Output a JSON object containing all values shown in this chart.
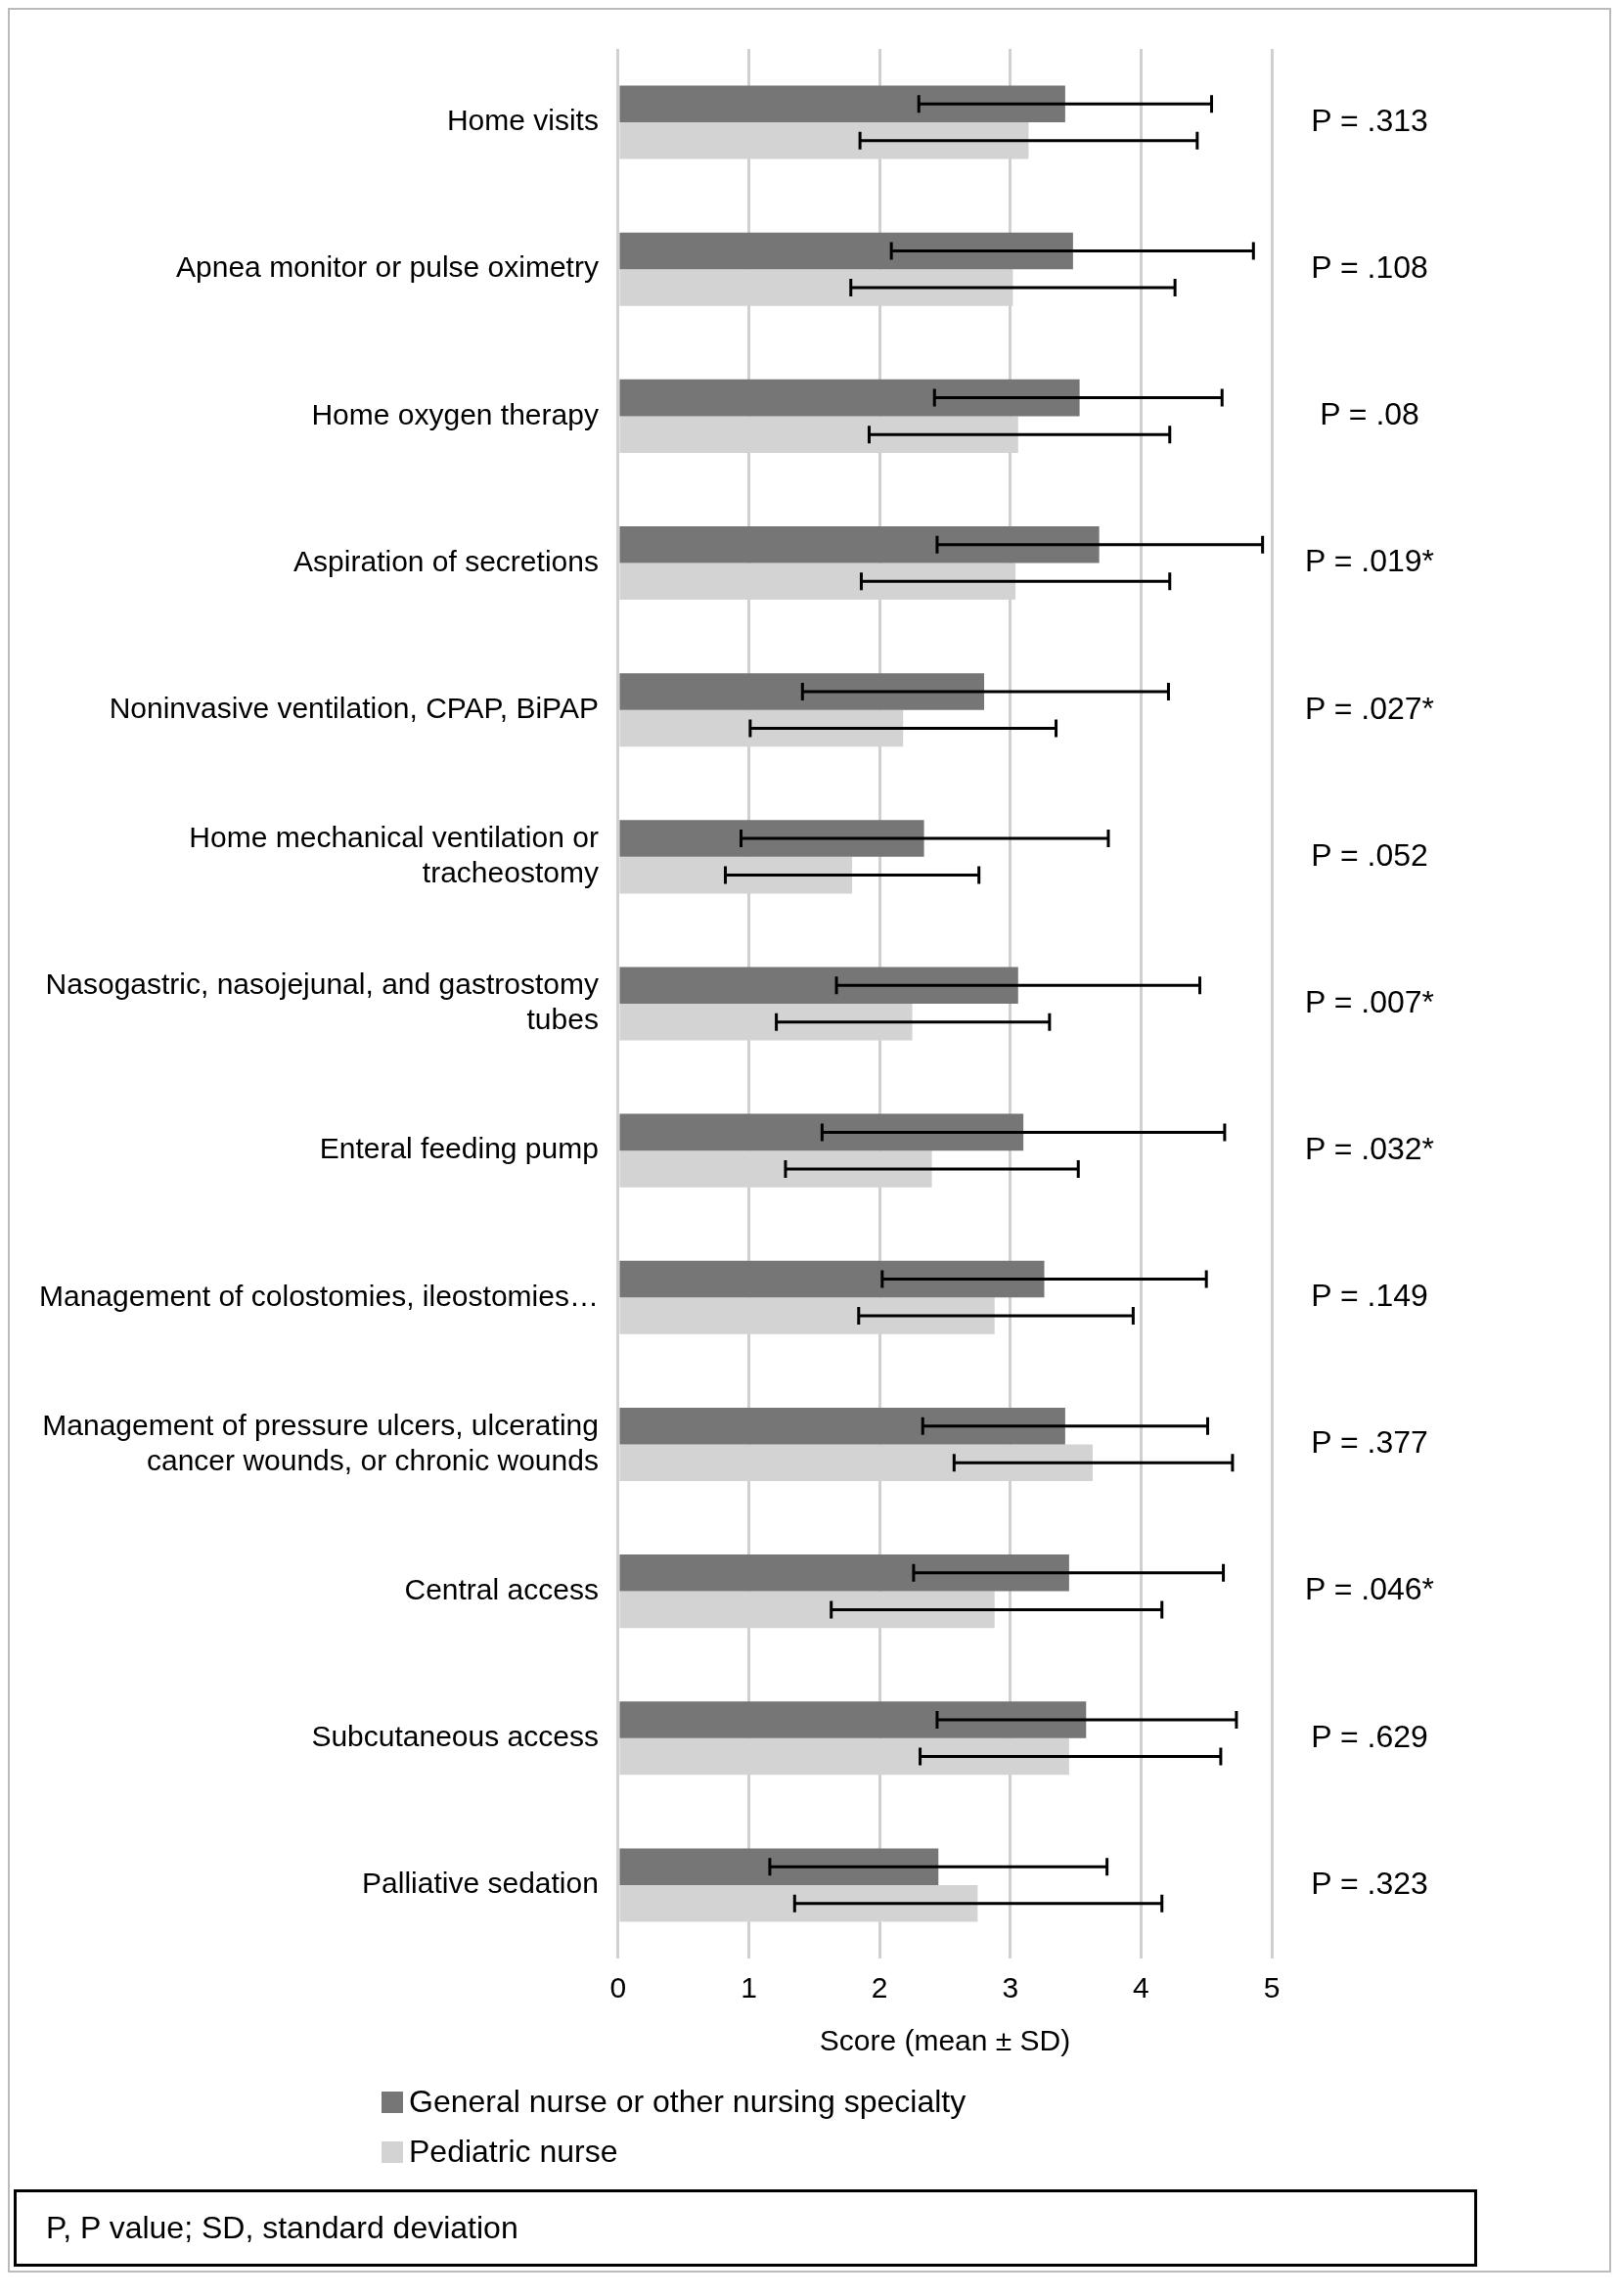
{
  "chart_data": {
    "type": "bar",
    "orientation": "horizontal",
    "xlabel": "Score (mean ± SD)",
    "categories": [
      "Home visits",
      "Apnea monitor or pulse oximetry",
      "Home oxygen therapy",
      "Aspiration of secretions",
      "Noninvasive ventilation, CPAP, BiPAP",
      "Home mechanical ventilation or tracheostomy",
      "Nasogastric, nasojejunal, and gastrostomy tubes",
      "Enteral feeding pump",
      "Management of colostomies, ileostomies…",
      "Management of pressure ulcers, ulcerating cancer wounds, or chronic wounds",
      "Central access",
      "Subcutaneous access",
      "Palliative sedation"
    ],
    "series": [
      {
        "name": "General nurse or other nursing specialty",
        "color": "#767676",
        "values": [
          3.42,
          3.48,
          3.53,
          3.68,
          2.8,
          2.34,
          3.06,
          3.1,
          3.26,
          3.42,
          3.45,
          3.58,
          2.45
        ],
        "errors": [
          [
            2.3,
            4.54
          ],
          [
            2.09,
            4.86
          ],
          [
            2.42,
            4.62
          ],
          [
            2.44,
            4.93
          ],
          [
            1.41,
            4.21
          ],
          [
            0.94,
            3.75
          ],
          [
            1.67,
            4.45
          ],
          [
            1.56,
            4.64
          ],
          [
            2.02,
            4.5
          ],
          [
            2.33,
            4.51
          ],
          [
            2.26,
            4.63
          ],
          [
            2.44,
            4.73
          ],
          [
            1.16,
            3.74
          ]
        ]
      },
      {
        "name": "Pediatric nurse",
        "color": "#d3d3d3",
        "values": [
          3.14,
          3.02,
          3.06,
          3.04,
          2.18,
          1.79,
          2.25,
          2.4,
          2.88,
          3.63,
          2.88,
          3.45,
          2.75
        ],
        "errors": [
          [
            1.85,
            4.43
          ],
          [
            1.78,
            4.26
          ],
          [
            1.92,
            4.22
          ],
          [
            1.86,
            4.22
          ],
          [
            1.01,
            3.35
          ],
          [
            0.82,
            2.76
          ],
          [
            1.21,
            3.3
          ],
          [
            1.28,
            3.52
          ],
          [
            1.84,
            3.94
          ],
          [
            2.57,
            4.7
          ],
          [
            1.63,
            4.16
          ],
          [
            2.31,
            4.61
          ],
          [
            1.35,
            4.16
          ]
        ]
      }
    ],
    "xlim": [
      0,
      5
    ],
    "xticks": [
      0,
      1,
      2,
      3,
      4,
      5
    ],
    "grid": "x",
    "legend": "bottom left",
    "annotations": [
      "P = .313",
      "P = .108",
      "P = .08",
      "P = .019*",
      "P = .027*",
      "P = .052",
      "P = .007*",
      "P = .032*",
      "P = .149",
      "P = .377",
      "P = .046*",
      "P = .629",
      "P = .323",
      "P, P value; SD, standard deviation"
    ]
  }
}
